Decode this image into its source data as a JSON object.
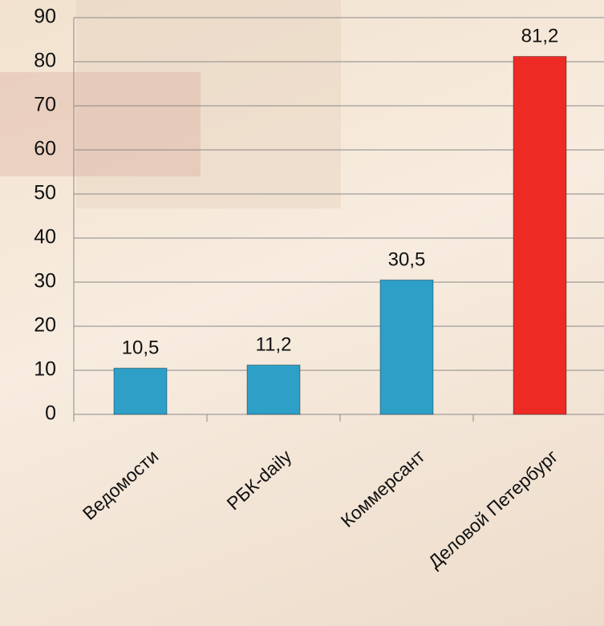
{
  "chart_data": {
    "type": "bar",
    "categories": [
      "Ведомости",
      "РБК-daily",
      "Коммерсант",
      "Деловой Петербург"
    ],
    "values": [
      10.5,
      11.2,
      30.5,
      81.2
    ],
    "value_labels": [
      "10,5",
      "11,2",
      "30,5",
      "81,2"
    ],
    "colors": [
      "#2e9fc7",
      "#2e9fc7",
      "#2e9fc7",
      "#ee2a24"
    ],
    "ylim": [
      0,
      90
    ],
    "yticks": [
      0,
      10,
      20,
      30,
      40,
      50,
      60,
      70,
      80,
      90
    ],
    "grid": true
  }
}
